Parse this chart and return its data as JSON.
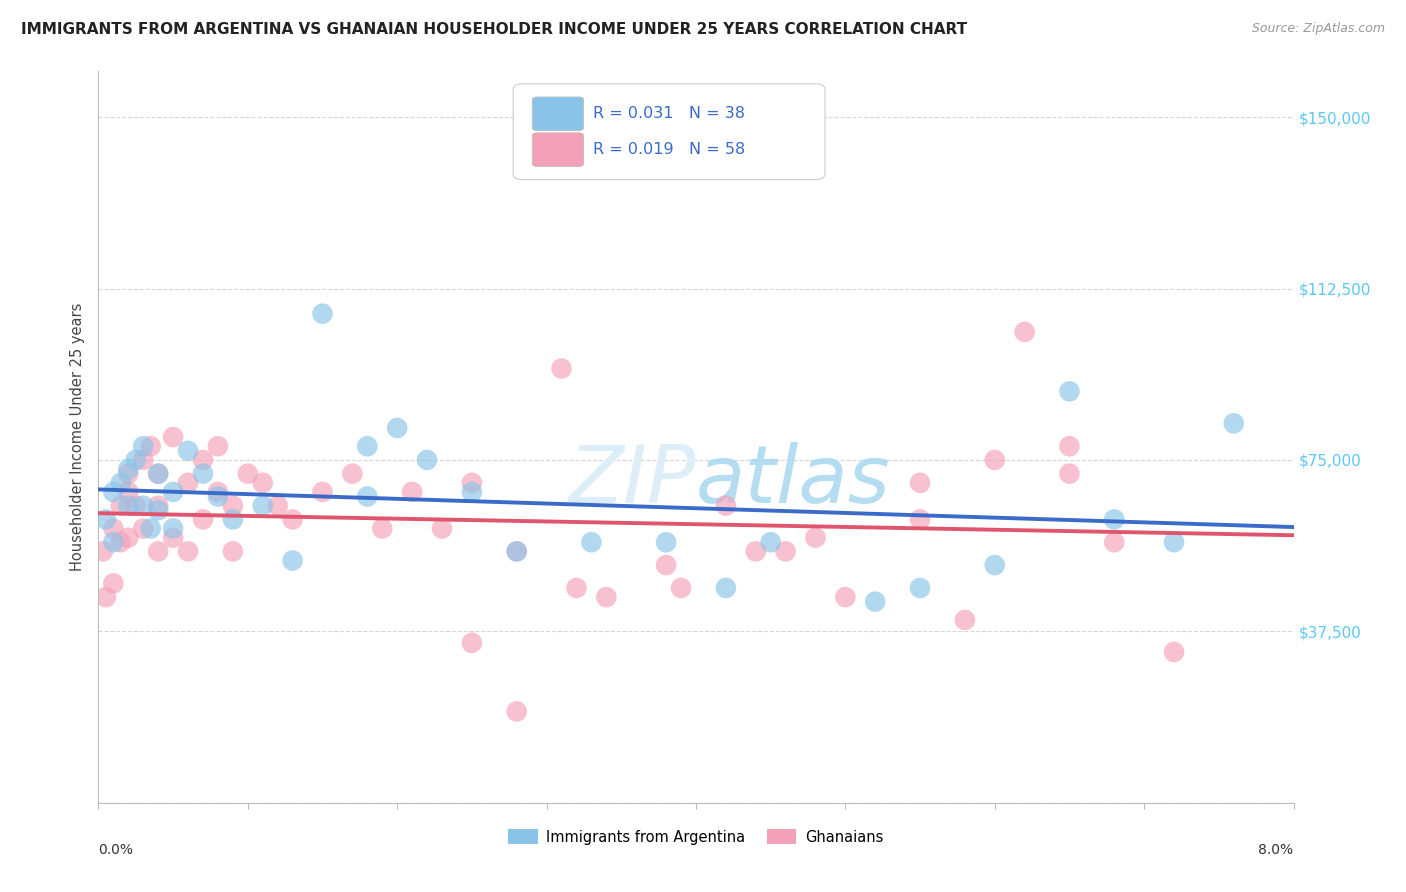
{
  "title": "IMMIGRANTS FROM ARGENTINA VS GHANAIAN HOUSEHOLDER INCOME UNDER 25 YEARS CORRELATION CHART",
  "source": "Source: ZipAtlas.com",
  "ylabel": "Householder Income Under 25 years",
  "yticks": [
    0,
    37500,
    75000,
    112500,
    150000
  ],
  "ytick_labels": [
    "",
    "$37,500",
    "$75,000",
    "$112,500",
    "$150,000"
  ],
  "xlim": [
    0.0,
    0.08
  ],
  "ylim": [
    0,
    160000
  ],
  "legend_label1": "Immigrants from Argentina",
  "legend_label2": "Ghanaians",
  "r1": 0.031,
  "n1": 38,
  "r2": 0.019,
  "n2": 58,
  "color_blue": "#89c4e8",
  "color_pink": "#f4a0b8",
  "color_blue_line": "#3a6bc9",
  "color_pink_line": "#e0556e",
  "color_tick_label": "#5bc8f5",
  "watermark_color": "#ddeef8",
  "blue_x": [
    0.0005,
    0.001,
    0.001,
    0.0015,
    0.002,
    0.002,
    0.0025,
    0.003,
    0.003,
    0.0035,
    0.004,
    0.004,
    0.005,
    0.005,
    0.006,
    0.007,
    0.008,
    0.009,
    0.011,
    0.013,
    0.015,
    0.018,
    0.018,
    0.02,
    0.022,
    0.025,
    0.028,
    0.033,
    0.038,
    0.042,
    0.045,
    0.052,
    0.055,
    0.06,
    0.065,
    0.068,
    0.072,
    0.076
  ],
  "blue_y": [
    62000,
    68000,
    57000,
    70000,
    65000,
    73000,
    75000,
    78000,
    65000,
    60000,
    72000,
    64000,
    68000,
    60000,
    77000,
    72000,
    67000,
    62000,
    65000,
    53000,
    107000,
    78000,
    67000,
    82000,
    75000,
    68000,
    55000,
    57000,
    57000,
    47000,
    57000,
    44000,
    47000,
    52000,
    90000,
    62000,
    57000,
    83000
  ],
  "pink_x": [
    0.0003,
    0.0005,
    0.001,
    0.001,
    0.0015,
    0.0015,
    0.002,
    0.002,
    0.002,
    0.0025,
    0.003,
    0.003,
    0.0035,
    0.004,
    0.004,
    0.004,
    0.005,
    0.005,
    0.006,
    0.006,
    0.007,
    0.007,
    0.008,
    0.008,
    0.009,
    0.009,
    0.01,
    0.011,
    0.012,
    0.013,
    0.015,
    0.017,
    0.019,
    0.021,
    0.023,
    0.025,
    0.028,
    0.031,
    0.034,
    0.038,
    0.042,
    0.046,
    0.05,
    0.055,
    0.058,
    0.062,
    0.065,
    0.048,
    0.044,
    0.039,
    0.032,
    0.028,
    0.025,
    0.06,
    0.065,
    0.068,
    0.072,
    0.055
  ],
  "pink_y": [
    55000,
    45000,
    60000,
    48000,
    65000,
    57000,
    68000,
    58000,
    72000,
    65000,
    75000,
    60000,
    78000,
    72000,
    65000,
    55000,
    80000,
    58000,
    70000,
    55000,
    75000,
    62000,
    68000,
    78000,
    65000,
    55000,
    72000,
    70000,
    65000,
    62000,
    68000,
    72000,
    60000,
    68000,
    60000,
    70000,
    55000,
    95000,
    45000,
    52000,
    65000,
    55000,
    45000,
    70000,
    40000,
    103000,
    72000,
    58000,
    55000,
    47000,
    47000,
    20000,
    35000,
    75000,
    78000,
    57000,
    33000,
    62000
  ]
}
